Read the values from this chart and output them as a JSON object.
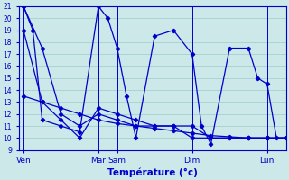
{
  "title": "Température (°c)",
  "bg_color": "#cce8e8",
  "grid_color": "#99cccc",
  "line_color": "#0000cc",
  "ylim": [
    9,
    21
  ],
  "yticks": [
    9,
    10,
    11,
    12,
    13,
    14,
    15,
    16,
    17,
    18,
    19,
    20,
    21
  ],
  "day_names": [
    "Ven",
    "Mar",
    "Sam",
    "Dim",
    "Lun"
  ],
  "day_x": [
    0,
    8,
    10,
    18,
    26
  ],
  "xlim": [
    -0.5,
    28
  ],
  "s1_x": [
    0,
    1,
    2,
    4,
    6,
    8,
    9,
    10,
    11,
    12,
    14,
    16,
    18,
    19,
    20,
    22,
    24,
    25,
    26,
    27,
    28
  ],
  "s1_y": [
    21,
    19,
    11.5,
    11,
    10.5,
    21,
    20,
    17.5,
    13.5,
    10,
    18.5,
    19,
    17,
    11,
    9.5,
    17.5,
    17.5,
    15,
    14.5,
    10,
    10
  ],
  "s2_x": [
    0,
    2,
    4,
    6,
    8,
    10,
    12,
    14,
    16,
    18,
    20,
    22,
    24,
    26,
    28
  ],
  "s2_y": [
    13.5,
    13.0,
    12.5,
    12.0,
    11.5,
    11.2,
    11.0,
    10.8,
    10.6,
    10.4,
    10.2,
    10.1,
    10.0,
    10.0,
    10.0
  ],
  "s3_x": [
    0,
    2,
    4,
    6,
    8,
    10,
    12,
    14,
    16,
    18,
    20,
    22,
    24,
    26,
    28
  ],
  "s3_y": [
    19,
    13,
    11.5,
    10,
    12.5,
    12,
    11.5,
    11,
    11,
    11,
    10,
    10,
    10,
    10,
    10
  ],
  "s4_x": [
    0,
    2,
    4,
    6,
    8,
    10,
    12,
    14,
    16,
    18,
    20,
    22,
    24,
    26,
    28
  ],
  "s4_y": [
    21,
    17.5,
    12,
    11,
    12,
    11.5,
    11,
    11,
    11,
    10,
    10,
    10,
    10,
    10,
    10
  ]
}
